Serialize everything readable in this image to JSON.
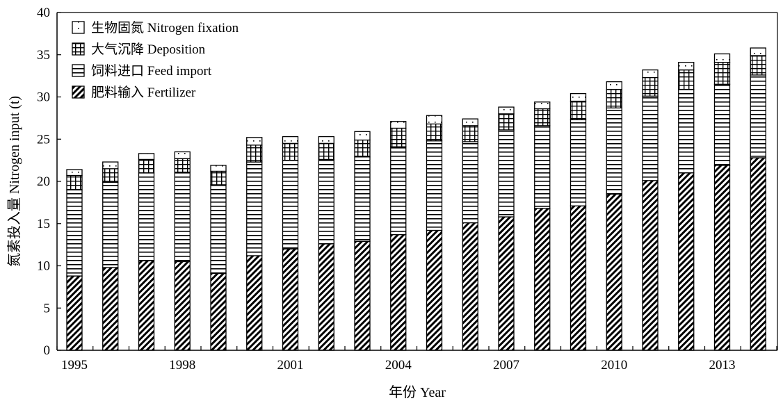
{
  "chart_data": {
    "type": "bar",
    "stacked": true,
    "xlabel": "年份 Year",
    "ylabel": "氮素投入量 Nitrogen input (t)",
    "ylim": [
      0,
      40
    ],
    "yticks": [
      0,
      5,
      10,
      15,
      20,
      25,
      30,
      35,
      40
    ],
    "categories": [
      "1995",
      "1996",
      "1997",
      "1998",
      "1999",
      "2000",
      "2001",
      "2002",
      "2003",
      "2004",
      "2005",
      "2006",
      "2007",
      "2008",
      "2009",
      "2010",
      "2011",
      "2012",
      "2013",
      "2014"
    ],
    "xtick_labels": [
      "1995",
      "1998",
      "2001",
      "2004",
      "2007",
      "2010",
      "2013"
    ],
    "grid": false,
    "legend_position": "top-left",
    "legend_order": [
      "生物固氮 Nitrogen fixation",
      "大气沉降 Deposition",
      "饲料进口 Feed import",
      "肥料输入 Fertilizer"
    ],
    "series": [
      {
        "name": "肥料输入 Fertilizer",
        "pattern": "diagonal",
        "values": [
          8.8,
          9.8,
          10.6,
          10.5,
          9.1,
          11.2,
          12.0,
          12.6,
          12.9,
          13.7,
          14.2,
          15.1,
          15.8,
          16.8,
          17.1,
          18.5,
          20.1,
          21.0,
          21.9,
          22.8
        ]
      },
      {
        "name": "饲料进口 Feed import",
        "pattern": "horizontal",
        "values": [
          10.2,
          10.1,
          10.4,
          10.6,
          10.5,
          11.1,
          10.5,
          10.0,
          10.0,
          10.4,
          10.6,
          9.6,
          10.3,
          9.8,
          10.2,
          10.2,
          10.0,
          9.9,
          9.6,
          9.8
        ]
      },
      {
        "name": "大气沉降 Deposition",
        "pattern": "grid",
        "values": [
          1.7,
          1.6,
          1.6,
          1.6,
          1.6,
          2.0,
          2.0,
          1.9,
          2.0,
          2.2,
          2.0,
          1.9,
          1.9,
          2.0,
          2.2,
          2.2,
          2.2,
          2.3,
          2.6,
          2.3
        ]
      },
      {
        "name": "生物固氮 Nitrogen fixation",
        "pattern": "dots",
        "values": [
          0.7,
          0.8,
          0.7,
          0.8,
          0.7,
          0.9,
          0.8,
          0.8,
          1.0,
          0.8,
          1.0,
          0.8,
          0.8,
          0.8,
          0.9,
          0.9,
          0.9,
          0.9,
          1.0,
          0.9
        ]
      }
    ]
  }
}
